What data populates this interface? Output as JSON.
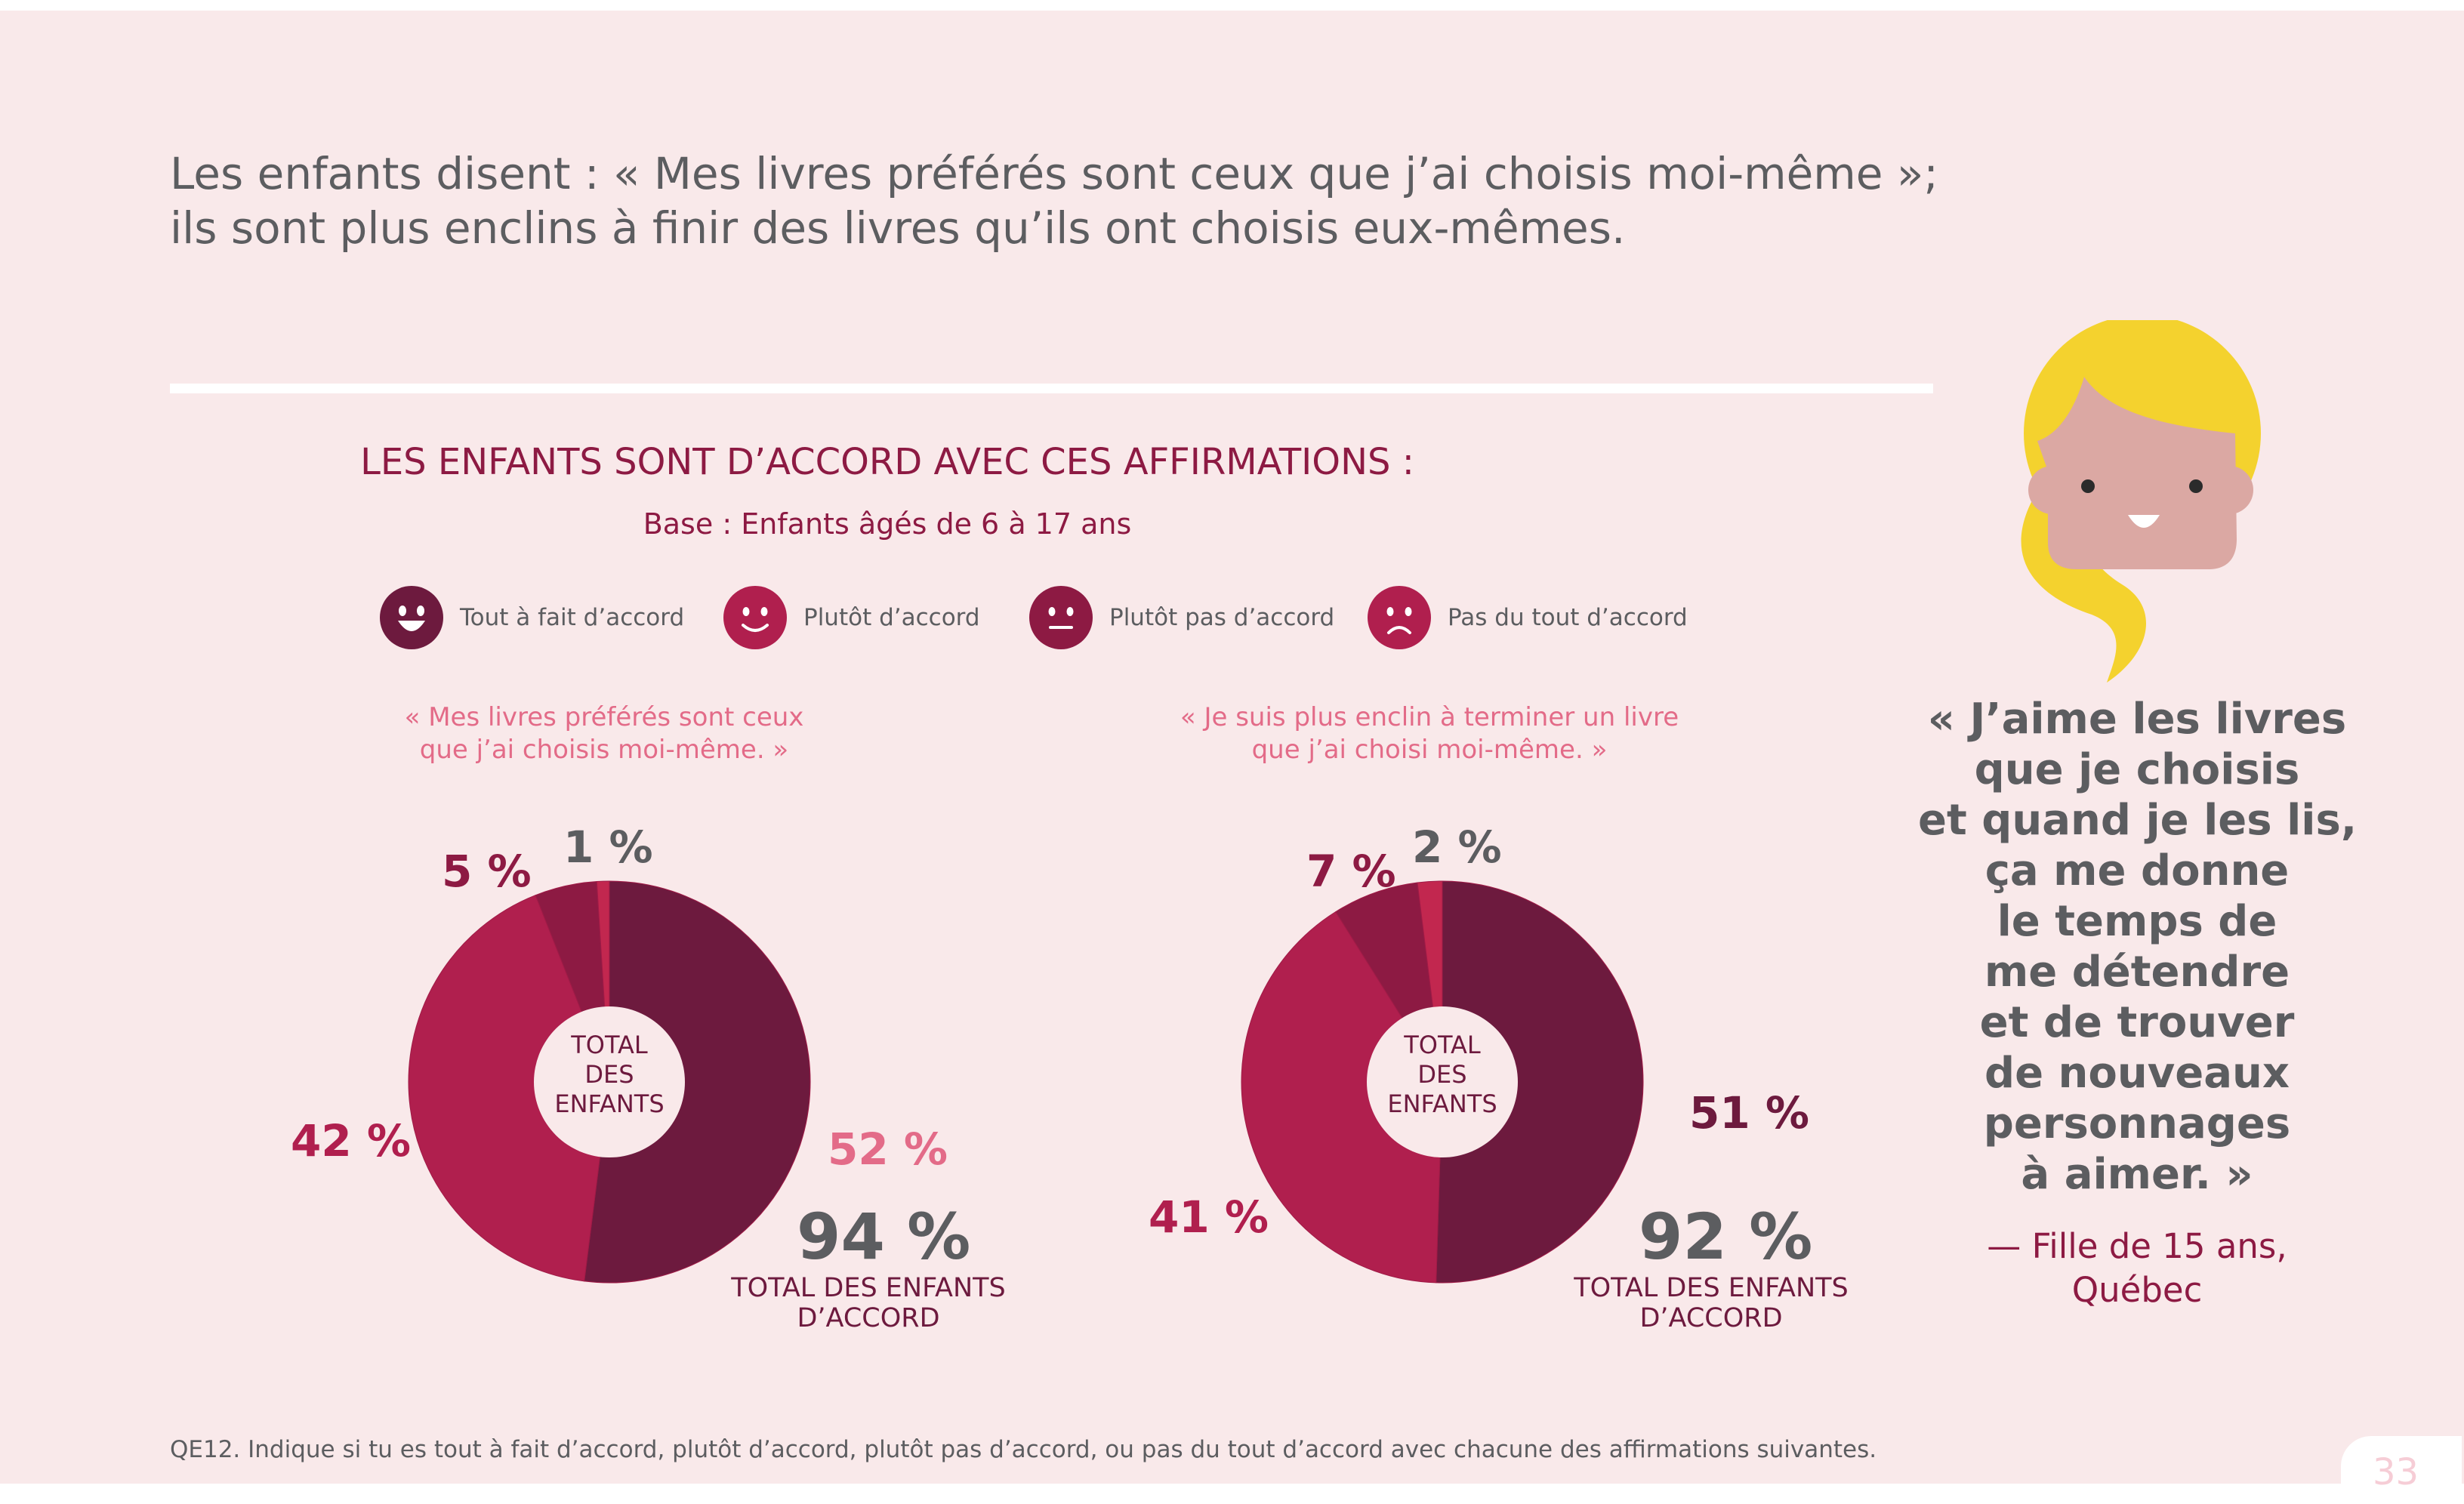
{
  "headline": {
    "line1": "Les enfants disent : « Mes livres préférés sont ceux que j’ai choisis moi-même »;",
    "line2": "ils sont plus enclins à finir des livres qu’ils ont choisis eux-mêmes."
  },
  "section": {
    "title": "LES ENFANTS SONT D’ACCORD AVEC CES AFFIRMATIONS :",
    "subtitle": "Base : Enfants âgés de 6 à 17 ans"
  },
  "legend": [
    {
      "label": "Tout à fait d’accord",
      "color": "#6d1a3e",
      "icon": "big-smile-face-icon"
    },
    {
      "label": "Plutôt d’accord",
      "color": "#b01f4e",
      "icon": "smile-face-icon"
    },
    {
      "label": "Plutôt pas d’accord",
      "color": "#8d1a43",
      "icon": "neutral-face-icon"
    },
    {
      "label": "Pas du tout d’accord",
      "color": "#b01f4e",
      "icon": "frown-face-icon"
    }
  ],
  "chart_data": [
    {
      "type": "pie",
      "question_line1": "« Mes livres préférés sont ceux",
      "question_line2": "que j’ai choisis moi-même. »",
      "center_label": [
        "TOTAL",
        "DES",
        "ENFANTS"
      ],
      "categories": [
        "Tout à fait d’accord",
        "Plutôt d’accord",
        "Plutôt pas d’accord",
        "Pas du tout d’accord"
      ],
      "values": [
        52,
        42,
        5,
        1
      ],
      "value_labels": [
        "52 %",
        "42 %",
        "5 %",
        "1 %"
      ],
      "total": 94,
      "total_label": "94 %",
      "total_caption_line1": "TOTAL DES ENFANTS",
      "total_caption_line2": "D’ACCORD"
    },
    {
      "type": "pie",
      "question_line1": "« Je suis plus enclin à terminer un livre",
      "question_line2": "que j’ai choisi moi-même. »",
      "center_label": [
        "TOTAL",
        "DES",
        "ENFANTS"
      ],
      "categories": [
        "Tout à fait d’accord",
        "Plutôt d’accord",
        "Plutôt pas d’accord",
        "Pas du tout d’accord"
      ],
      "values": [
        51,
        41,
        7,
        2
      ],
      "value_labels": [
        "51 %",
        "41 %",
        "7 %",
        "2 %"
      ],
      "total": 92,
      "total_label": "92 %",
      "total_caption_line1": "TOTAL DES ENFANTS",
      "total_caption_line2": "D’ACCORD"
    }
  ],
  "colors": {
    "tout_a_fait": "#6d1a3e",
    "plutot": "#b01f4e",
    "plutot_pas": "#8d1a43",
    "pas_du_tout": "#c2274f",
    "highlight_pink": "#e36b88",
    "grey_text": "#5c5d60"
  },
  "quote": {
    "lines": [
      "« J’aime les livres",
      "que je choisis",
      "et quand je les lis,",
      "ça me donne",
      "le temps de",
      "me détendre",
      "et de trouver",
      "de nouveaux",
      "personnages",
      "à aimer. »"
    ],
    "attribution_line1": "— Fille de 15 ans,",
    "attribution_line2": "Québec"
  },
  "footnote": "QE12. Indique si tu es tout à fait d’accord, plutôt d’accord, plutôt pas d’accord, ou pas du tout d’accord avec chacune des affirmations suivantes.",
  "page_number": "33"
}
